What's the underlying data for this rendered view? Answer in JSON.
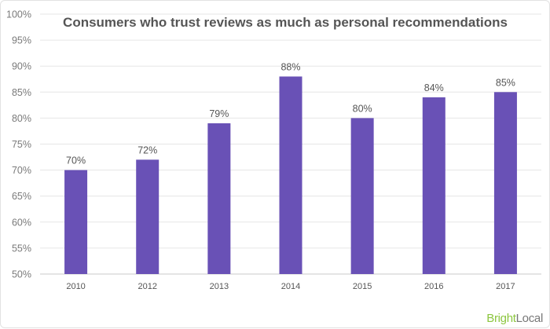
{
  "chart_data": {
    "type": "bar",
    "title": "Consumers who trust reviews as much as personal recommendations",
    "categories": [
      "2010",
      "2012",
      "2013",
      "2014",
      "2015",
      "2016",
      "2017"
    ],
    "values": [
      70,
      72,
      79,
      88,
      80,
      84,
      85
    ],
    "value_labels": [
      "70%",
      "72%",
      "79%",
      "88%",
      "80%",
      "84%",
      "85%"
    ],
    "yticks": [
      "50%",
      "55%",
      "60%",
      "65%",
      "70%",
      "75%",
      "80%",
      "85%",
      "90%",
      "95%",
      "100%"
    ],
    "ylim": [
      50,
      100
    ],
    "xlabel": "",
    "ylabel": "",
    "grid": true,
    "bar_color": "#6951b6"
  },
  "brand": {
    "part1": "Bright",
    "part2": "Local"
  }
}
